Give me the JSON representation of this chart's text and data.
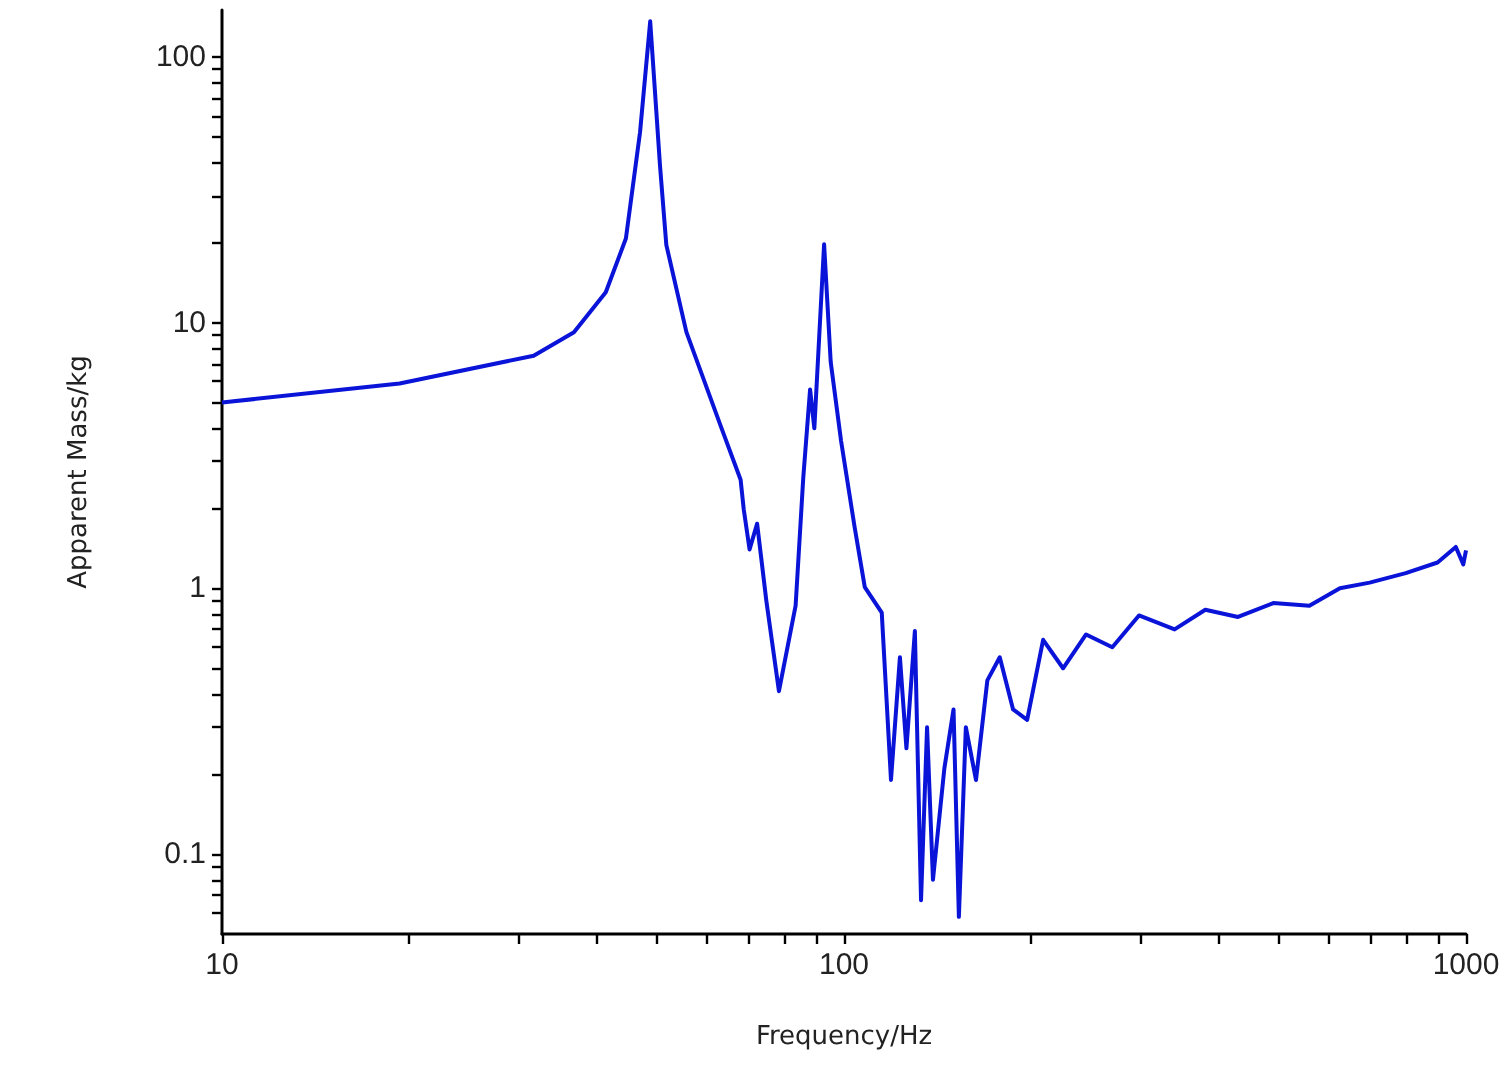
{
  "chart_data": {
    "type": "line",
    "xlabel": "Frequency/Hz",
    "ylabel": "Apparent Mass/kg",
    "log": "xy",
    "grid": false,
    "marker": "none",
    "line_style": "solid",
    "xlim": [
      10,
      1000
    ],
    "ylim": [
      0.05,
      150
    ],
    "xticks": [
      10,
      {
        "value": 20,
        "label": null
      },
      {
        "value": 30,
        "label": null
      },
      {
        "value": 40,
        "label": null
      },
      {
        "value": 50,
        "label": null
      },
      {
        "value": 60,
        "label": null
      },
      {
        "value": 70,
        "label": null
      },
      {
        "value": 80,
        "label": null
      },
      {
        "value": 90,
        "label": null
      },
      100,
      {
        "value": 200,
        "label": null
      },
      {
        "value": 300,
        "label": null
      },
      {
        "value": 400,
        "label": null
      },
      {
        "value": 500,
        "label": null
      },
      {
        "value": 600,
        "label": null
      },
      {
        "value": 700,
        "label": null
      },
      {
        "value": 800,
        "label": null
      },
      {
        "value": 900,
        "label": null
      },
      1000
    ],
    "yticks": [
      {
        "value": 0.06,
        "label": null
      },
      {
        "value": 0.07,
        "label": null
      },
      {
        "value": 0.08,
        "label": null
      },
      {
        "value": 0.09,
        "label": null
      },
      0.1,
      {
        "value": 0.2,
        "label": null
      },
      {
        "value": 0.3,
        "label": null
      },
      {
        "value": 0.4,
        "label": null
      },
      {
        "value": 0.5,
        "label": null
      },
      {
        "value": 0.6,
        "label": null
      },
      {
        "value": 0.7,
        "label": null
      },
      {
        "value": 0.8,
        "label": null
      },
      {
        "value": 0.9,
        "label": null
      },
      1,
      {
        "value": 2,
        "label": null
      },
      {
        "value": 3,
        "label": null
      },
      {
        "value": 4,
        "label": null
      },
      {
        "value": 5,
        "label": null
      },
      {
        "value": 6,
        "label": null
      },
      {
        "value": 7,
        "label": null
      },
      {
        "value": 8,
        "label": null
      },
      {
        "value": 9,
        "label": null
      },
      10,
      {
        "value": 20,
        "label": null
      },
      {
        "value": 30,
        "label": null
      },
      {
        "value": 40,
        "label": null
      },
      {
        "value": 50,
        "label": null
      },
      {
        "value": 60,
        "label": null
      },
      {
        "value": 70,
        "label": null
      },
      {
        "value": 80,
        "label": null
      },
      {
        "value": 90,
        "label": null
      },
      100
    ],
    "series": [
      {
        "color": "#0a14d8",
        "x": [
          10,
          19.3,
          31.7,
          36.8,
          41.4,
          44.6,
          47,
          48.8,
          50.6,
          51.8,
          55.8,
          63.3,
          68.2,
          69,
          70.5,
          72.5,
          75,
          78.6,
          83.6,
          86,
          88.2,
          89.6,
          92.9,
          95.2,
          98.9,
          104,
          108,
          115,
          119,
          123,
          126,
          130,
          133,
          136,
          139,
          145,
          150,
          153,
          157,
          163,
          170,
          178,
          187,
          197,
          209,
          225,
          245,
          270,
          298,
          340,
          381,
          430,
          490,
          560,
          627,
          700,
          800,
          900,
          963,
          990,
          1000
        ],
        "values": [
          5,
          5.9,
          7.5,
          9.2,
          13,
          20.7,
          52,
          136,
          39,
          19.6,
          9.2,
          4.1,
          2.56,
          1.98,
          1.4,
          1.75,
          0.9,
          0.41,
          0.86,
          2.6,
          5.6,
          4,
          19.7,
          7.1,
          3.6,
          1.7,
          1.01,
          0.81,
          0.19,
          0.55,
          0.25,
          0.69,
          0.067,
          0.3,
          0.08,
          0.21,
          0.35,
          0.058,
          0.3,
          0.19,
          0.45,
          0.55,
          0.35,
          0.32,
          0.64,
          0.5,
          0.67,
          0.6,
          0.79,
          0.7,
          0.83,
          0.78,
          0.88,
          0.86,
          1,
          1.05,
          1.14,
          1.25,
          1.43,
          1.23,
          1.39
        ]
      }
    ]
  }
}
